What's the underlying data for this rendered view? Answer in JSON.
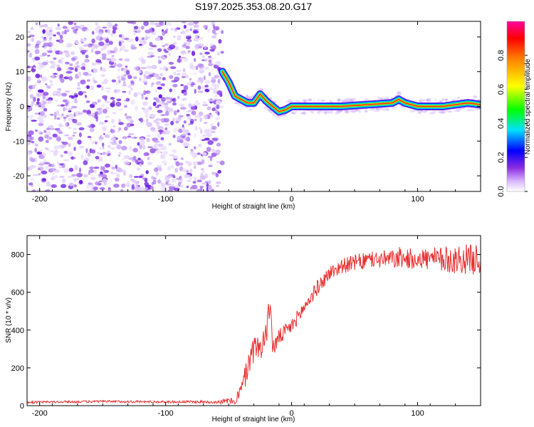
{
  "title": "S197.2025.353.08.20.G17",
  "chart_data": [
    {
      "type": "heatmap",
      "xlabel": "Height of straight line (km)",
      "ylabel": "Frequency (Hz)",
      "xlim": [
        -210,
        150
      ],
      "ylim": [
        -24.5,
        24.5
      ],
      "xticks": [
        -200,
        -100,
        0,
        100
      ],
      "yticks": [
        -20,
        -10,
        0,
        10,
        20
      ],
      "noise_region_x": [
        -210,
        -55
      ],
      "signal_ridge": {
        "x": [
          -55,
          -50,
          -45,
          -40,
          -35,
          -30,
          -25,
          -20,
          -15,
          -10,
          -5,
          0,
          10,
          20,
          40,
          60,
          80,
          85,
          90,
          100,
          120,
          140,
          150
        ],
        "freq": [
          10,
          7,
          3,
          2,
          1,
          1,
          3.5,
          1.5,
          0,
          -1.5,
          -1,
          0,
          0,
          0,
          0,
          0.5,
          1,
          2,
          1,
          0,
          0,
          1,
          0.5
        ]
      },
      "colorbar": {
        "label": "Normalized spectral amplitude",
        "range": [
          0,
          1
        ],
        "ticks": [
          "0.0",
          "0.2",
          "0.4",
          "0.6",
          "0.8"
        ]
      }
    },
    {
      "type": "line",
      "xlabel": "Height of straight line (km)",
      "ylabel": "SNR (10 * v/v)",
      "xlim": [
        -210,
        150
      ],
      "ylim": [
        0,
        900
      ],
      "xticks": [
        -200,
        -100,
        0,
        100
      ],
      "yticks": [
        0,
        200,
        400,
        600,
        800
      ],
      "color": "#e83030",
      "series": [
        {
          "name": "SNR",
          "x": [
            -210,
            -150,
            -100,
            -60,
            -45,
            -40,
            -35,
            -30,
            -25,
            -20,
            -17,
            -15,
            -10,
            0,
            10,
            20,
            30,
            40,
            60,
            80,
            100,
            120,
            140,
            150
          ],
          "y": [
            18,
            22,
            20,
            20,
            25,
            80,
            200,
            300,
            310,
            380,
            560,
            300,
            360,
            420,
            520,
            620,
            700,
            740,
            770,
            775,
            780,
            770,
            775,
            770
          ],
          "noise": [
            6,
            6,
            6,
            8,
            20,
            50,
            70,
            70,
            70,
            70,
            60,
            50,
            45,
            40,
            40,
            40,
            40,
            40,
            45,
            50,
            55,
            70,
            80,
            80
          ]
        }
      ]
    }
  ]
}
